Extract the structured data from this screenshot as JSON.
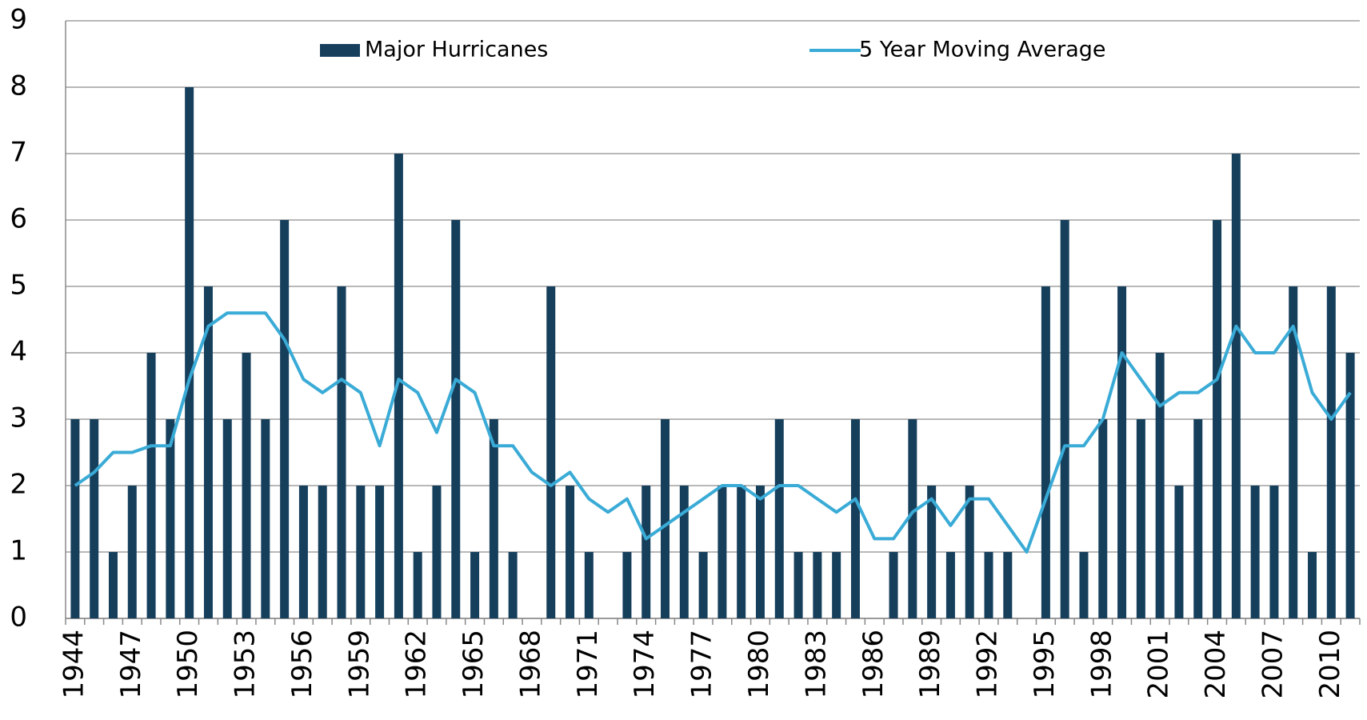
{
  "chart_data": {
    "type": "bar",
    "categories": [
      "1944",
      null,
      null,
      "1947",
      null,
      null,
      "1950",
      null,
      null,
      "1953",
      null,
      null,
      "1956",
      null,
      null,
      "1959",
      null,
      null,
      "1962",
      null,
      null,
      "1965",
      null,
      null,
      "1968",
      null,
      null,
      "1971",
      null,
      null,
      "1974",
      null,
      null,
      "1977",
      null,
      null,
      "1980",
      null,
      null,
      "1983",
      null,
      null,
      "1986",
      null,
      null,
      "1989",
      null,
      null,
      "1992",
      null,
      null,
      "1995",
      null,
      null,
      "1998",
      null,
      null,
      "2001",
      null,
      null,
      "2004",
      null,
      null,
      "2007",
      null,
      null,
      "2010",
      null
    ],
    "series": [
      {
        "name": "Major Hurricanes",
        "type": "bar",
        "color": "#163f5c",
        "values": [
          3,
          3,
          1,
          2,
          4,
          3,
          8,
          5,
          3,
          4,
          3,
          6,
          2,
          2,
          5,
          2,
          2,
          7,
          1,
          2,
          6,
          1,
          3,
          1,
          0,
          5,
          2,
          1,
          0,
          1,
          2,
          3,
          2,
          1,
          2,
          2,
          2,
          3,
          1,
          1,
          1,
          3,
          0,
          1,
          3,
          2,
          1,
          2,
          1,
          1,
          0,
          5,
          6,
          1,
          3,
          5,
          3,
          4,
          2,
          3,
          6,
          7,
          2,
          2,
          5,
          1,
          5,
          4
        ]
      },
      {
        "name": "5 Year Moving Average",
        "type": "line",
        "color": "#3aabd6",
        "values": [
          2.0,
          2.2,
          2.5,
          2.5,
          2.6,
          2.6,
          3.6,
          4.4,
          4.6,
          4.6,
          4.6,
          4.2,
          3.6,
          3.4,
          3.6,
          3.4,
          2.6,
          3.6,
          3.4,
          2.8,
          3.6,
          3.4,
          2.6,
          2.6,
          2.2,
          2.0,
          2.2,
          1.8,
          1.6,
          1.8,
          1.2,
          1.4,
          1.6,
          1.8,
          2.0,
          2.0,
          1.8,
          2.0,
          2.0,
          1.8,
          1.6,
          1.8,
          1.2,
          1.2,
          1.6,
          1.8,
          1.4,
          1.8,
          1.8,
          1.4,
          1.0,
          1.8,
          2.6,
          2.6,
          3.0,
          4.0,
          3.6,
          3.2,
          3.4,
          3.4,
          3.6,
          4.4,
          4.0,
          4.0,
          4.4,
          3.4,
          3.0,
          3.4
        ]
      }
    ],
    "ylim": [
      0,
      9
    ],
    "yticks": [
      0,
      1,
      2,
      3,
      4,
      5,
      6,
      7,
      8,
      9
    ],
    "grid": true,
    "legend": "top"
  }
}
